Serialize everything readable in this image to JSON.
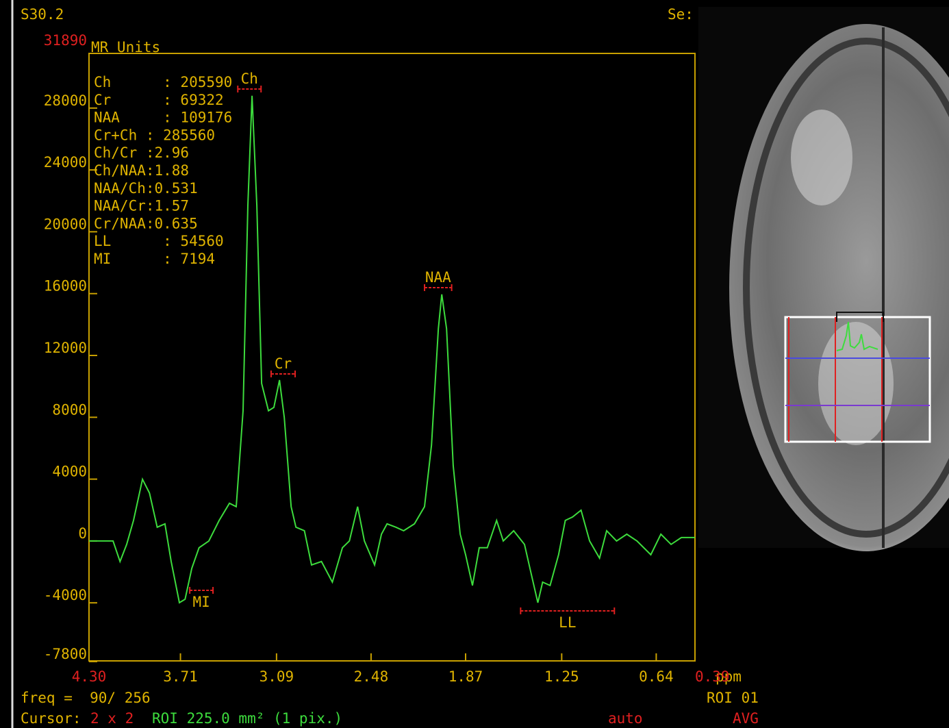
{
  "chart_data": {
    "type": "line",
    "y_label": "MR Units",
    "x_label": "ppm",
    "xlim": [
      4.3,
      0.39
    ],
    "ylim": [
      -7800,
      31890
    ],
    "xticks": [
      {
        "value": 4.3,
        "label": "4.30"
      },
      3.71,
      3.09,
      2.48,
      1.87,
      1.25,
      0.64,
      0.39
    ],
    "yticks": [
      31890,
      28000,
      24000,
      20000,
      16000,
      12000,
      8000,
      4000,
      0,
      -4000,
      -7800
    ],
    "x": [
      4.3,
      4.145,
      4.1,
      4.057,
      4.013,
      3.955,
      3.91,
      3.86,
      3.81,
      3.77,
      3.717,
      3.68,
      3.637,
      3.59,
      3.527,
      3.46,
      3.394,
      3.35,
      3.306,
      3.275,
      3.248,
      3.217,
      3.186,
      3.142,
      3.107,
      3.071,
      3.04,
      2.996,
      2.965,
      2.91,
      2.864,
      2.8,
      2.73,
      2.665,
      2.62,
      2.567,
      2.523,
      2.457,
      2.413,
      2.377,
      2.32,
      2.27,
      2.2,
      2.135,
      2.09,
      2.046,
      2.024,
      1.993,
      1.95,
      1.905,
      1.87,
      1.826,
      1.782,
      1.73,
      1.67,
      1.627,
      1.56,
      1.49,
      1.45,
      1.404,
      1.373,
      1.325,
      1.27,
      1.227,
      1.18,
      1.125,
      1.07,
      1.006,
      0.96,
      0.896,
      0.83,
      0.764,
      0.675,
      0.61,
      0.544,
      0.478,
      0.39
    ],
    "series": [
      {
        "name": "spectrum",
        "color": "#3ddc3d",
        "values": [
          0,
          0,
          -1330,
          -220,
          1330,
          3990,
          3100,
          890,
          1110,
          -1330,
          -3990,
          -3770,
          -1770,
          -440,
          0,
          1330,
          2440,
          2220,
          8420,
          21710,
          28800,
          21710,
          10190,
          8420,
          8640,
          10410,
          7980,
          2220,
          890,
          660,
          -1550,
          -1330,
          -2660,
          -440,
          0,
          2220,
          0,
          -1550,
          440,
          1110,
          890,
          660,
          1110,
          2220,
          6200,
          13730,
          15950,
          13730,
          4870,
          440,
          -890,
          -2880,
          -440,
          -440,
          1330,
          0,
          660,
          -220,
          -1990,
          -3990,
          -2660,
          -2880,
          -890,
          1330,
          1550,
          1990,
          0,
          -1110,
          660,
          0,
          440,
          0,
          -890,
          440,
          -220,
          220,
          220
        ]
      }
    ],
    "peaks": [
      {
        "label": "Ch",
        "range": [
          3.34,
          3.19
        ]
      },
      {
        "label": "Cr",
        "range": [
          3.125,
          2.97
        ]
      },
      {
        "label": "NAA",
        "range": [
          2.135,
          1.96
        ]
      },
      {
        "label": "MI",
        "range": [
          3.65,
          3.5
        ]
      },
      {
        "label": "LL",
        "range": [
          1.515,
          0.91
        ]
      }
    ],
    "stats": [
      "Ch      : 205590",
      "Cr      : 69322",
      "NAA     : 109176",
      "Cr+Ch : 285560",
      "Ch/Cr :2.96",
      "Ch/NAA:1.88",
      "NAA/Ch:0.531",
      "NAA/Cr:1.57",
      "Cr/NAA:0.635",
      "LL      : 54560",
      "MI      : 7194"
    ]
  },
  "screen": {
    "series_id": "S30.2",
    "se": "Se:",
    "freq": "freq =  90/ 256",
    "roi": "ROI 01",
    "cursor": "Cursor:",
    "size": "2 x 2",
    "roi_area": "ROI 225.0 mm² (1 pix.)",
    "mode": "auto",
    "avg": "AVG"
  }
}
